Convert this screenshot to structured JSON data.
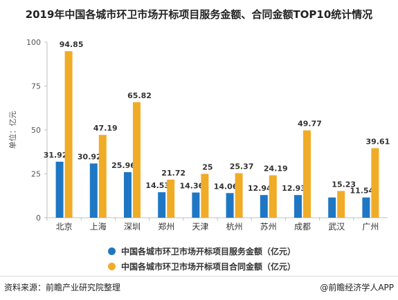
{
  "title": "2019年中国各城市环卫市场开标项目服务金额、合同金额TOP10统计情况",
  "source": "资料来源：前瞻产业研究院整理",
  "brand": "@前瞻经济学人APP",
  "chart_data": {
    "type": "bar",
    "title": "2019年中国各城市环卫市场开标项目服务金额、合同金额TOP10统计情况",
    "ylabel": "单位：亿元",
    "ylim": [
      0,
      100
    ],
    "yticks": [
      0,
      25,
      50,
      75,
      100
    ],
    "grid": false,
    "legend": "bottom",
    "categories": [
      "北京",
      "上海",
      "深圳",
      "郑州",
      "天津",
      "杭州",
      "苏州",
      "成都",
      "武汉",
      "广州"
    ],
    "series": [
      {
        "name": "中国各城市环卫市场开标项目服务金额（亿元）",
        "color": "#1f77c4",
        "values": [
          31.92,
          30.92,
          25.96,
          14.53,
          14.36,
          14.06,
          12.94,
          12.93,
          11.54,
          11.54
        ],
        "labels": [
          "31.92",
          "30.92",
          "25.96",
          "14.53",
          "14.36",
          "14.06",
          "12.94",
          "12.93",
          "",
          "11.54"
        ]
      },
      {
        "name": "中国各城市环卫市场开标项目合同金额（亿元）",
        "color": "#f0ac27",
        "values": [
          94.85,
          47.19,
          65.82,
          21.72,
          25,
          25.37,
          24.19,
          49.77,
          15.23,
          39.61
        ],
        "labels": [
          "94.85",
          "47.19",
          "65.82",
          "21.72",
          "25",
          "25.37",
          "24.19",
          "49.77",
          "15.23",
          "39.61"
        ]
      }
    ]
  }
}
